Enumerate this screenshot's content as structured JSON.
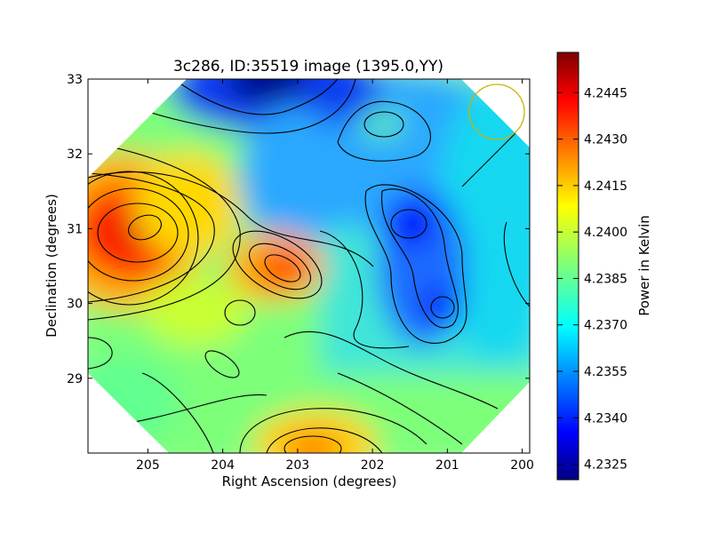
{
  "chart_data": {
    "type": "heatmap",
    "title": "3c286, ID:35519 image (1395.0,YY)",
    "xlabel": "Right Ascension (degrees)",
    "ylabel": "Declination (degrees)",
    "xlim": [
      205.8,
      199.9
    ],
    "ylim": [
      28.0,
      33.0
    ],
    "x_ticks": [
      "205",
      "204",
      "203",
      "202",
      "201",
      "200"
    ],
    "x_tick_values": [
      205,
      204,
      203,
      202,
      201,
      200
    ],
    "y_ticks": [
      "29",
      "30",
      "31",
      "32",
      "33"
    ],
    "y_tick_values": [
      29,
      30,
      31,
      32,
      33
    ],
    "colorbar": {
      "label": "Power in Kelvin",
      "range": [
        4.232,
        4.2458
      ],
      "ticks": [
        "4.2445",
        "4.2430",
        "4.2415",
        "4.2400",
        "4.2385",
        "4.2370",
        "4.2355",
        "4.2340",
        "4.2325"
      ],
      "tick_values": [
        4.2445,
        4.243,
        4.2415,
        4.24,
        4.2385,
        4.237,
        4.2355,
        4.234,
        4.2325
      ],
      "colormap": "jet"
    },
    "peaks": [
      {
        "ra": 204.9,
        "dec": 31.0,
        "value": 4.2452
      },
      {
        "ra": 203.2,
        "dec": 30.5,
        "value": 4.2435
      },
      {
        "ra": 202.7,
        "dec": 28.1,
        "value": 4.2428
      },
      {
        "ra": 203.3,
        "dec": 33.0,
        "value": 4.2322
      },
      {
        "ra": 201.5,
        "dec": 31.0,
        "value": 4.2334
      },
      {
        "ra": 201.0,
        "dec": 29.9,
        "value": 4.2334
      }
    ],
    "beam_circle": {
      "ra": 200.35,
      "dec": 32.55,
      "radius_deg": 0.37,
      "color": "#c8b400"
    },
    "grid": false
  }
}
